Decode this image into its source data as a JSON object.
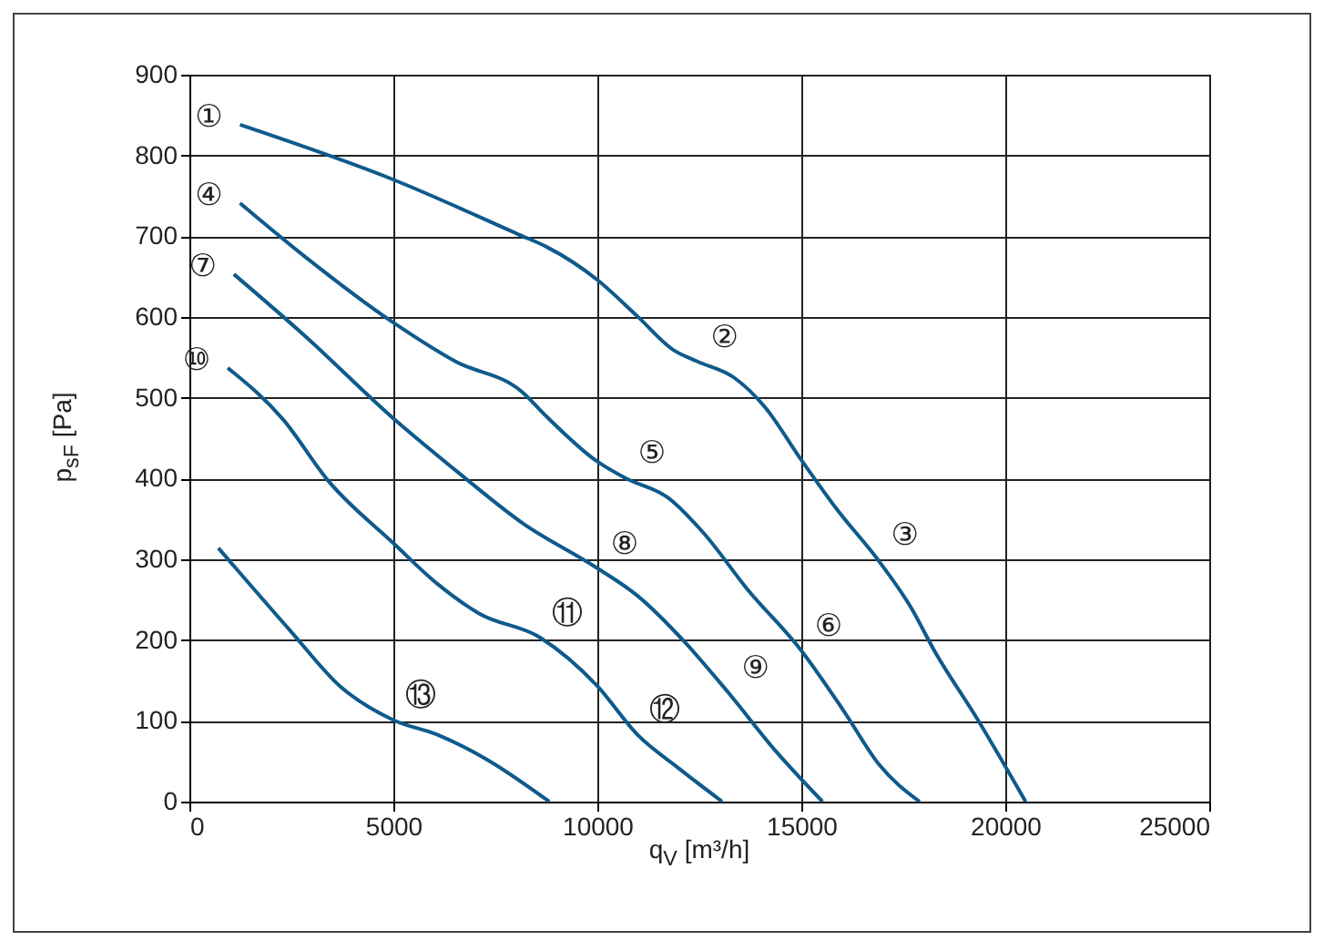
{
  "chart_data": {
    "type": "line",
    "xlabel": "q$_{V}$ [m³/h]",
    "ylabel": "p$_{sF}$ [Pa]",
    "xlim": [
      0,
      25000
    ],
    "ylim": [
      0,
      900
    ],
    "xticks": [
      0,
      5000,
      10000,
      15000,
      20000,
      25000
    ],
    "yticks": [
      0,
      100,
      200,
      300,
      400,
      500,
      600,
      700,
      800,
      900
    ],
    "grid": true,
    "series": [
      {
        "color": "#0f5a8c",
        "x": [
          1240,
          5000,
          8080,
          8750,
          10000,
          10980,
          11870,
          12450,
          13350,
          14100,
          15000,
          15900,
          16870,
          17680,
          18260,
          19330,
          20500
        ],
        "values": [
          838,
          770,
          702,
          687,
          646,
          601,
          559,
          545,
          525,
          489,
          423,
          360,
          300,
          241,
          187,
          101,
          0
        ]
      },
      {
        "color": "#0f5a8c",
        "x": [
          1240,
          2800,
          5000,
          6520,
          8160,
          8750,
          10000,
          10670,
          11740,
          12630,
          13660,
          15000,
          16030,
          16920,
          17900
        ],
        "values": [
          741,
          676,
          593,
          545,
          507,
          477,
          421,
          401,
          376,
          331,
          264,
          187,
          113,
          45,
          0
        ]
      },
      {
        "color": "#0f5a8c",
        "x": [
          1090,
          2800,
          5030,
          6650,
          8160,
          10000,
          10980,
          12170,
          13210,
          14400,
          15520
        ],
        "values": [
          653,
          578,
          473,
          405,
          345,
          289,
          255,
          196,
          135,
          61,
          0
        ]
      },
      {
        "color": "#0f5a8c",
        "x": [
          940,
          2300,
          3390,
          5000,
          6070,
          7100,
          8600,
          10000,
          10980,
          12000,
          13060
        ],
        "values": [
          537,
          473,
          398,
          320,
          270,
          233,
          203,
          143,
          83,
          41,
          0
        ]
      },
      {
        "color": "#0f5a8c",
        "x": [
          710,
          2500,
          3690,
          5000,
          6070,
          7260,
          8820
        ],
        "values": [
          314,
          210,
          143,
          101,
          83,
          53,
          0
        ]
      }
    ],
    "annotations": [
      {
        "text": "①",
        "x": 1240,
        "y": 838
      },
      {
        "text": "②",
        "x": 12450,
        "y": 545
      },
      {
        "text": "③",
        "x": 16870,
        "y": 300
      },
      {
        "text": "④",
        "x": 1240,
        "y": 741
      },
      {
        "text": "⑤",
        "x": 10670,
        "y": 401
      },
      {
        "text": "⑥",
        "x": 15000,
        "y": 187
      },
      {
        "text": "⑦",
        "x": 1090,
        "y": 653
      },
      {
        "text": "⑧",
        "x": 10000,
        "y": 289
      },
      {
        "text": "⑨",
        "x": 13210,
        "y": 135
      },
      {
        "text": "⑩",
        "x": 940,
        "y": 537
      },
      {
        "text": "⑪",
        "x": 8600,
        "y": 203
      },
      {
        "text": "⑫",
        "x": 10980,
        "y": 83
      },
      {
        "text": "⑬",
        "x": 5000,
        "y": 101
      }
    ]
  }
}
